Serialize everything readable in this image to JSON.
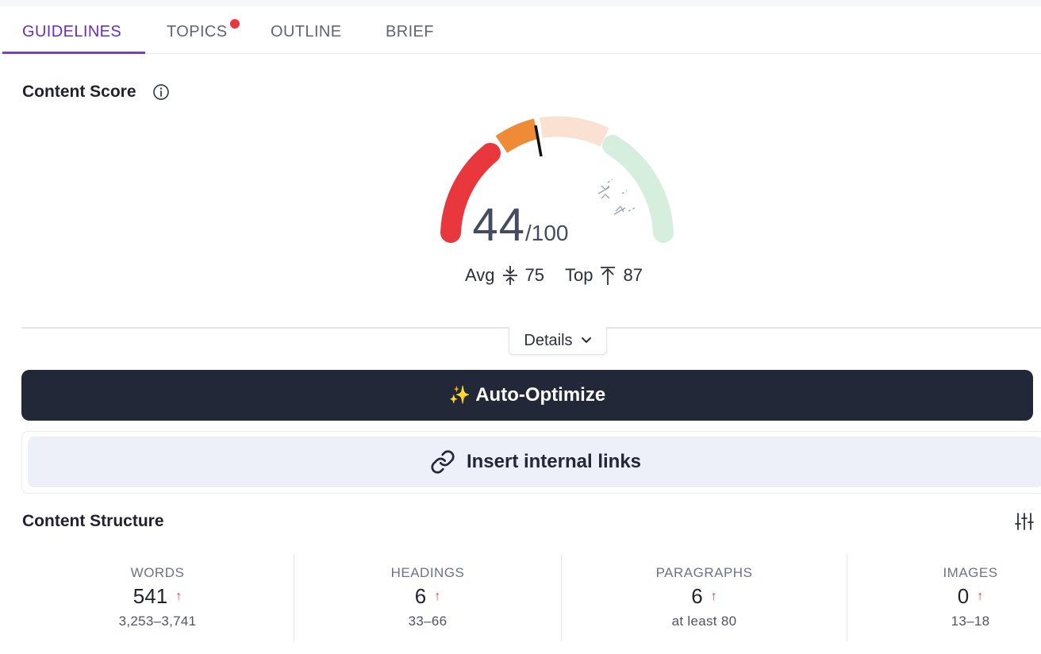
{
  "tabs": [
    {
      "label": "GUIDELINES",
      "active": true
    },
    {
      "label": "TOPICS",
      "has_notification": true
    },
    {
      "label": "OUTLINE"
    },
    {
      "label": "BRIEF"
    }
  ],
  "content_score": {
    "title": "Content Score",
    "score": "44",
    "max": "/100",
    "avg_label": "Avg",
    "avg_value": "75",
    "top_label": "Top",
    "top_value": "87",
    "details_label": "Details"
  },
  "actions": {
    "auto_optimize_icon": "✨",
    "auto_optimize_label": "Auto-Optimize",
    "insert_links_label": "Insert internal links"
  },
  "content_structure": {
    "title": "Content Structure",
    "stats": [
      {
        "label": "WORDS",
        "value": "541",
        "trend": "↑",
        "range": "3,253–3,741"
      },
      {
        "label": "HEADINGS",
        "value": "6",
        "trend": "↑",
        "range": "33–66"
      },
      {
        "label": "PARAGRAPHS",
        "value": "6",
        "trend": "↑",
        "range": "at least 80"
      },
      {
        "label": "IMAGES",
        "value": "0",
        "trend": "↑",
        "range": "13–18"
      }
    ]
  },
  "colors": {
    "accent": "#6b2fb3",
    "gauge_red": "#e8373d",
    "gauge_orange": "#ef8a36",
    "gauge_peach": "#fbe1d2",
    "gauge_green": "#d6eedd",
    "dark_button": "#232839"
  }
}
